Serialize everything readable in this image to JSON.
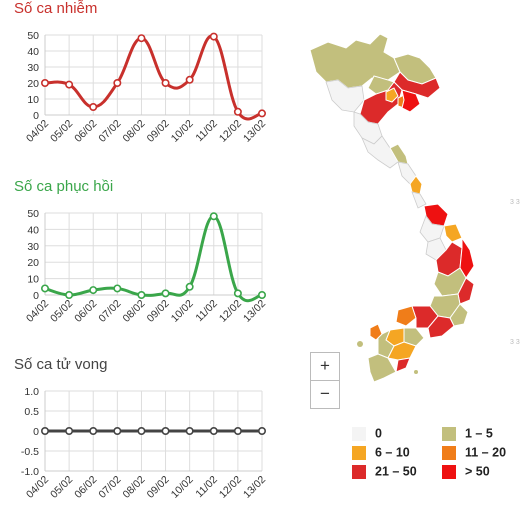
{
  "charts": {
    "infected": {
      "title": "Số ca nhiễm",
      "color": "#c8302c"
    },
    "recovered": {
      "title": "Số ca phục hồi",
      "color": "#3aa64a"
    },
    "deaths": {
      "title": "Số ca tử vong",
      "color": "#444444"
    }
  },
  "chart_data": [
    {
      "type": "line",
      "title": "Số ca nhiễm",
      "categories": [
        "04/02",
        "05/02",
        "06/02",
        "07/02",
        "08/02",
        "09/02",
        "10/02",
        "11/02",
        "12/02",
        "13/02"
      ],
      "values": [
        20,
        19,
        5,
        20,
        48,
        20,
        22,
        49,
        2,
        1
      ],
      "yticks": [
        0,
        10,
        20,
        30,
        40,
        50
      ],
      "ylim": [
        0,
        50
      ],
      "color": "#c8302c",
      "grid": true
    },
    {
      "type": "line",
      "title": "Số ca phục hồi",
      "categories": [
        "04/02",
        "05/02",
        "06/02",
        "07/02",
        "08/02",
        "09/02",
        "10/02",
        "11/02",
        "12/02",
        "13/02"
      ],
      "values": [
        4,
        0,
        3,
        4,
        0,
        1,
        5,
        48,
        1,
        0
      ],
      "yticks": [
        0,
        10,
        20,
        30,
        40,
        50
      ],
      "ylim": [
        0,
        50
      ],
      "color": "#3aa64a",
      "grid": true
    },
    {
      "type": "line",
      "title": "Số ca tử vong",
      "categories": [
        "04/02",
        "05/02",
        "06/02",
        "07/02",
        "08/02",
        "09/02",
        "10/02",
        "11/02",
        "12/02",
        "13/02"
      ],
      "values": [
        0,
        0,
        0,
        0,
        0,
        0,
        0,
        0,
        0,
        0
      ],
      "yticks": [
        "-1.0",
        "-0.5",
        "0",
        "0.5",
        "1.0"
      ],
      "ylim": [
        -1,
        1
      ],
      "color": "#444444",
      "grid": true
    }
  ],
  "map": {
    "zoom_in": "+",
    "zoom_out": "−",
    "legend": [
      {
        "label": "0",
        "color": "#f4f4f4"
      },
      {
        "label": "1 – 5",
        "color": "#c2bf7d"
      },
      {
        "label": "6 – 10",
        "color": "#f5a623"
      },
      {
        "label": "11 – 20",
        "color": "#f07d19"
      },
      {
        "label": "21 – 50",
        "color": "#dc2a2a"
      },
      {
        "label": "> 50",
        "color": "#ee1111"
      }
    ]
  },
  "side_marks_top": "3 3",
  "side_marks_bottom": "3 3"
}
